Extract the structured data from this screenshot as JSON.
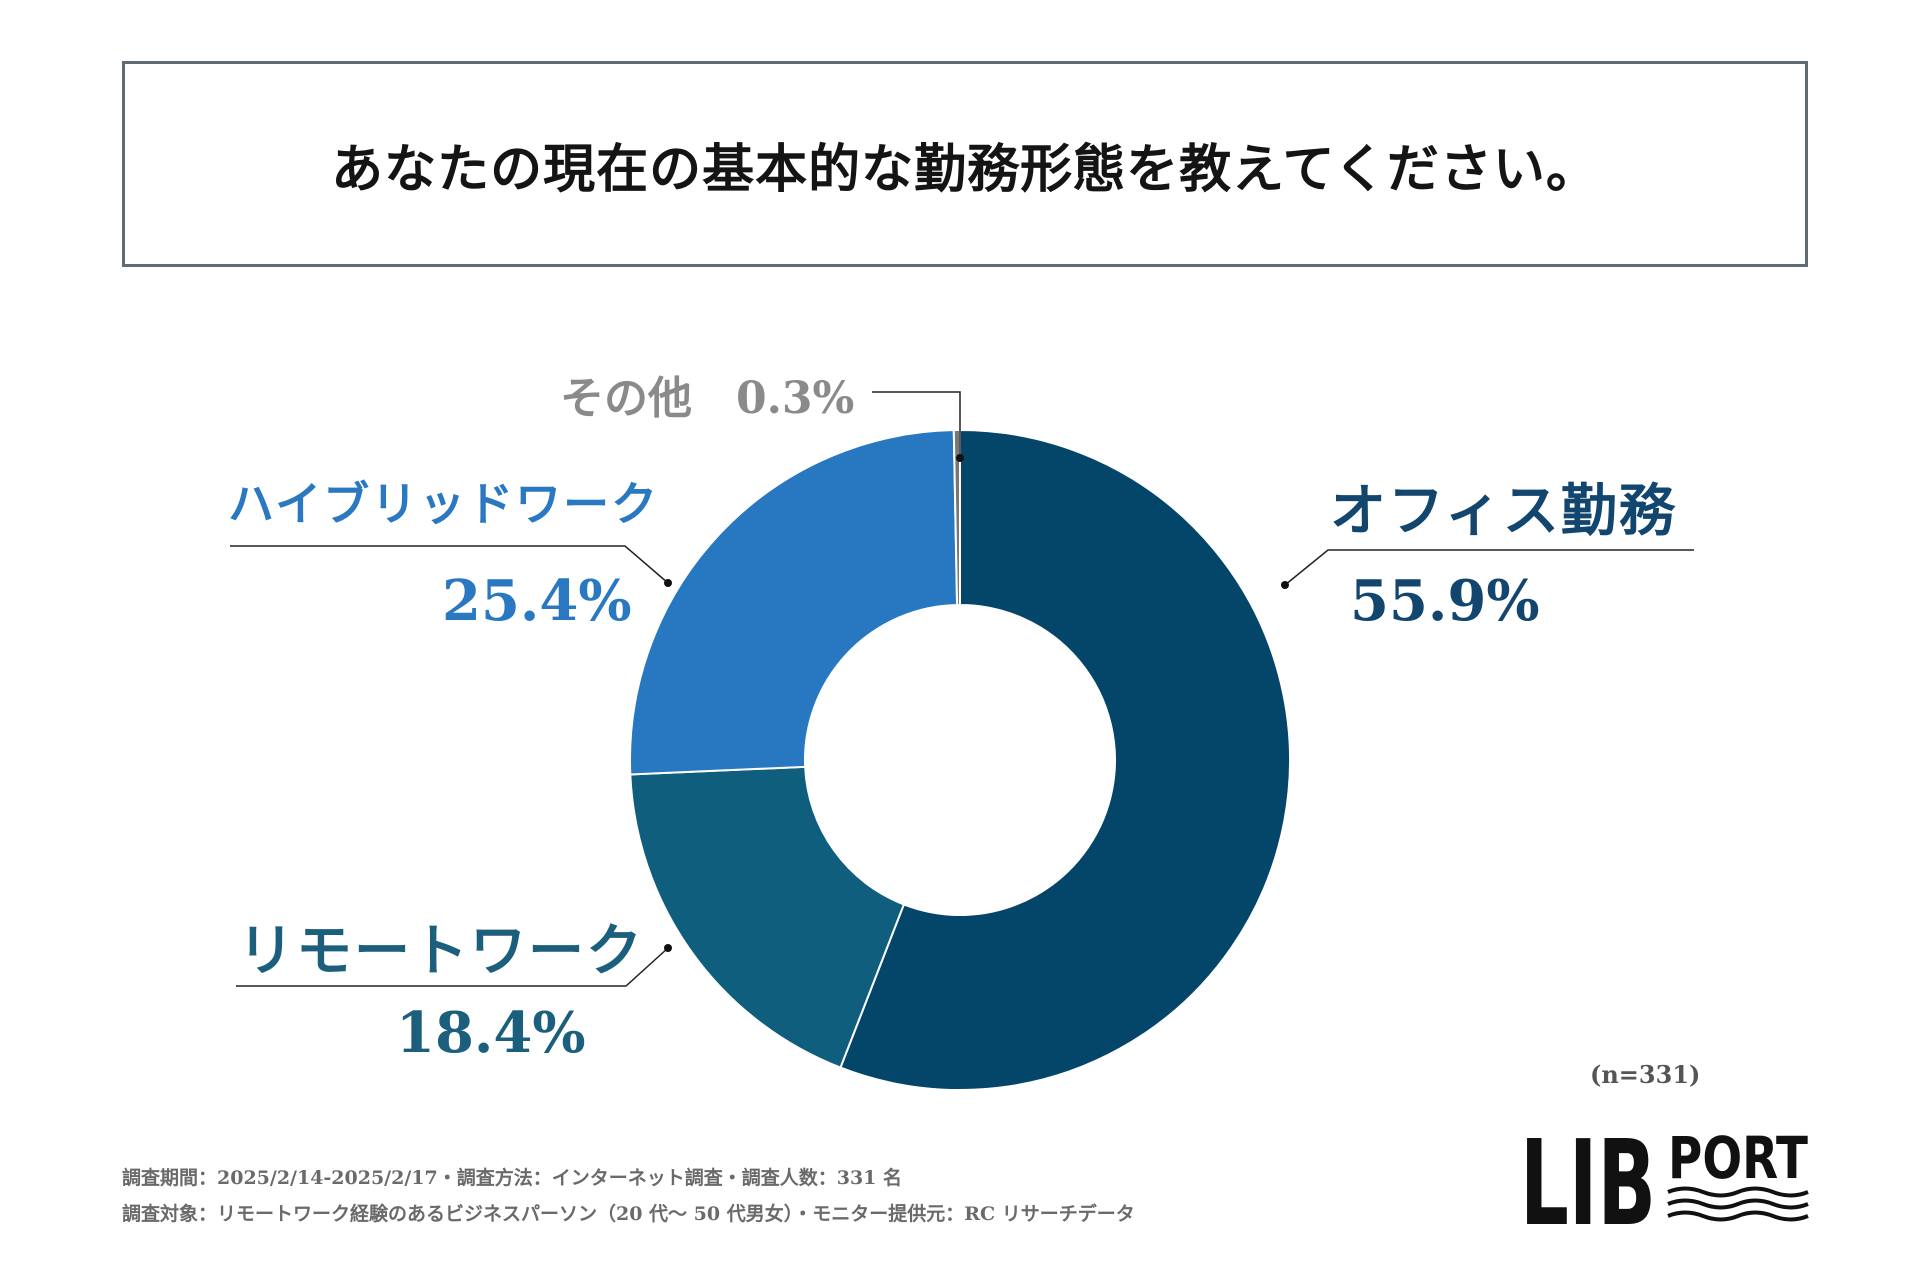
{
  "title": "あなたの現在の基本的な勤務形態を教えてください。",
  "chart_data": {
    "type": "pie",
    "donut": true,
    "slices": [
      {
        "name": "オフィス勤務",
        "value": 55.9,
        "label": "55.9%",
        "color": "#03466a"
      },
      {
        "name": "リモートワーク",
        "value": 18.4,
        "label": "18.4%",
        "color": "#0f5e7d"
      },
      {
        "name": "ハイブリッドワーク",
        "value": 25.4,
        "label": "25.4%",
        "color": "#2778c0"
      },
      {
        "name": "その他",
        "value": 0.3,
        "label": "0.3%",
        "color": "#777777"
      }
    ]
  },
  "labels": {
    "other": "その他　0.3%",
    "hybrid_name": "ハイブリッドワーク",
    "hybrid_value": "25.4%",
    "office_name": "オフィス勤務",
    "office_value": "55.9%",
    "remote_name": "リモートワーク",
    "remote_value": "18.4%"
  },
  "sample_size": "(n=331)",
  "notes": {
    "line1": "調査期間：2025/2/14-2025/2/17・調査方法：インターネット調査・調査人数：331 名",
    "line2": "調査対象：リモートワーク経験のあるビジネスパーソン（20 代〜 50 代男女）・モニター提供元：RC リサーチデータ"
  },
  "logo": {
    "text_main": "LIB",
    "text_sub": "PORT"
  }
}
